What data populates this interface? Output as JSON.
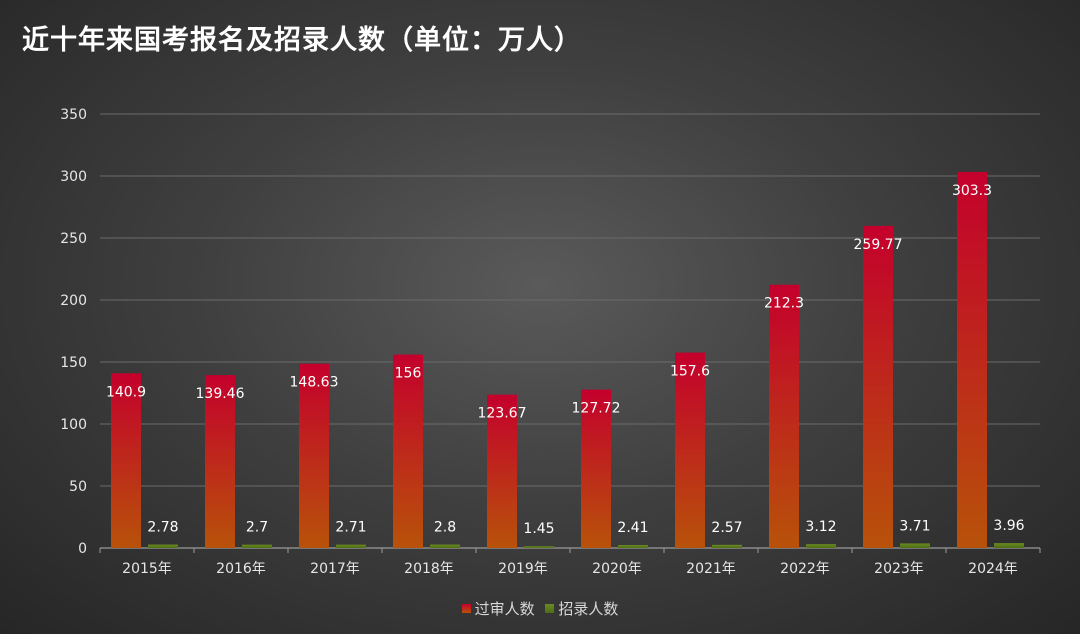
{
  "chart_data": {
    "type": "bar",
    "title": "近十年来国考报名及招录人数（单位：万人）",
    "categories": [
      "2015年",
      "2016年",
      "2017年",
      "2018年",
      "2019年",
      "2020年",
      "2021年",
      "2022年",
      "2023年",
      "2024年"
    ],
    "series": [
      {
        "name": "过审人数",
        "values": [
          140.9,
          139.46,
          148.63,
          156,
          123.67,
          127.72,
          157.6,
          212.3,
          259.77,
          303.3
        ],
        "color_top": "#c2002a",
        "color_bottom": "#b44a08"
      },
      {
        "name": "招录人数",
        "values": [
          2.78,
          2.7,
          2.71,
          2.8,
          1.45,
          2.41,
          2.57,
          3.12,
          3.71,
          3.96
        ],
        "color_top": "#5e7f1c",
        "color_bottom": "#4a6a12"
      }
    ],
    "data_labels": {
      "series_0": [
        "140.9",
        "139.46",
        "148.63",
        "156",
        "123.67",
        "127.72",
        "157.6",
        "212.3",
        "259.77",
        "303.3"
      ],
      "series_1": [
        "2.78",
        "2.7",
        "2.71",
        "2.8",
        "1.45",
        "2.41",
        "2.57",
        "3.12",
        "3.71",
        "3.96"
      ]
    },
    "ylim": [
      0,
      350
    ],
    "yticks": [
      0,
      50,
      100,
      150,
      200,
      250,
      300,
      350
    ],
    "ytick_labels": [
      "0",
      "50",
      "100",
      "150",
      "200",
      "250",
      "300",
      "350"
    ],
    "xlabel": "",
    "ylabel": "",
    "grid": true,
    "legend_position": "bottom-center"
  }
}
